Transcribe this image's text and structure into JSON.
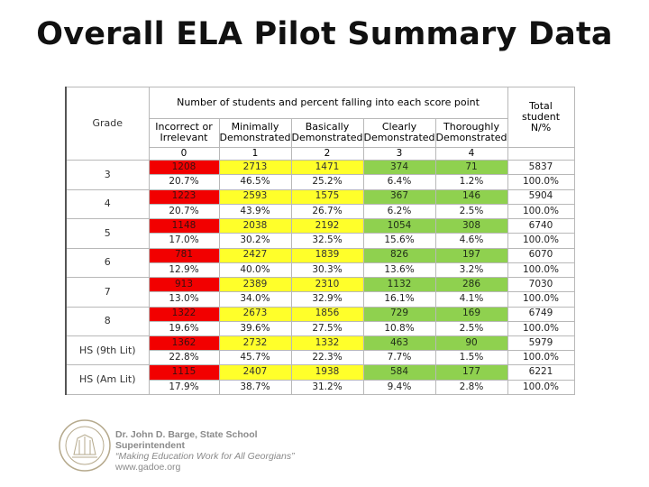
{
  "title": "Overall ELA Pilot Summary Data",
  "table": {
    "grade_header": "Grade",
    "group_header": "Number of students and percent falling into each score point",
    "total_header": "Total student N/%",
    "categories": [
      {
        "label": "Incorrect or Irrelevant",
        "point": "0"
      },
      {
        "label": "Minimally Demonstrated",
        "point": "1"
      },
      {
        "label": "Basically Demonstrated",
        "point": "2"
      },
      {
        "label": "Clearly Demonstrated",
        "point": "3"
      },
      {
        "label": "Thoroughly Demonstrated",
        "point": "4"
      }
    ],
    "rows": [
      {
        "grade": "3",
        "counts": [
          "1208",
          "2713",
          "1471",
          "374",
          "71"
        ],
        "total": "5837",
        "pcts": [
          "20.7%",
          "46.5%",
          "25.2%",
          "6.4%",
          "1.2%"
        ],
        "total_pct": "100.0%"
      },
      {
        "grade": "4",
        "counts": [
          "1223",
          "2593",
          "1575",
          "367",
          "146"
        ],
        "total": "5904",
        "pcts": [
          "20.7%",
          "43.9%",
          "26.7%",
          "6.2%",
          "2.5%"
        ],
        "total_pct": "100.0%"
      },
      {
        "grade": "5",
        "counts": [
          "1148",
          "2038",
          "2192",
          "1054",
          "308"
        ],
        "total": "6740",
        "pcts": [
          "17.0%",
          "30.2%",
          "32.5%",
          "15.6%",
          "4.6%"
        ],
        "total_pct": "100.0%"
      },
      {
        "grade": "6",
        "counts": [
          "781",
          "2427",
          "1839",
          "826",
          "197"
        ],
        "total": "6070",
        "pcts": [
          "12.9%",
          "40.0%",
          "30.3%",
          "13.6%",
          "3.2%"
        ],
        "total_pct": "100.0%"
      },
      {
        "grade": "7",
        "counts": [
          "913",
          "2389",
          "2310",
          "1132",
          "286"
        ],
        "total": "7030",
        "pcts": [
          "13.0%",
          "34.0%",
          "32.9%",
          "16.1%",
          "4.1%"
        ],
        "total_pct": "100.0%"
      },
      {
        "grade": "8",
        "counts": [
          "1322",
          "2673",
          "1856",
          "729",
          "169"
        ],
        "total": "6749",
        "pcts": [
          "19.6%",
          "39.6%",
          "27.5%",
          "10.8%",
          "2.5%"
        ],
        "total_pct": "100.0%"
      },
      {
        "grade": "HS (9th Lit)",
        "counts": [
          "1362",
          "2732",
          "1332",
          "463",
          "90"
        ],
        "total": "5979",
        "pcts": [
          "22.8%",
          "45.7%",
          "22.3%",
          "7.7%",
          "1.5%"
        ],
        "total_pct": "100.0%"
      },
      {
        "grade": "HS (Am Lit)",
        "counts": [
          "1115",
          "2407",
          "1938",
          "584",
          "177"
        ],
        "total": "6221",
        "pcts": [
          "17.9%",
          "38.7%",
          "31.2%",
          "9.4%",
          "2.8%"
        ],
        "total_pct": "100.0%"
      }
    ],
    "colors": {
      "point0": "#f20000",
      "point1_2": "#ffff2a",
      "point3_4": "#8fd14f"
    }
  },
  "footer": {
    "line1": "Dr. John D. Barge, State School",
    "line2": "Superintendent",
    "line3": "“Making Education Work for All Georgians”",
    "line4": "www.gadoe.org",
    "seal_icon": "georgia-state-seal-icon"
  }
}
